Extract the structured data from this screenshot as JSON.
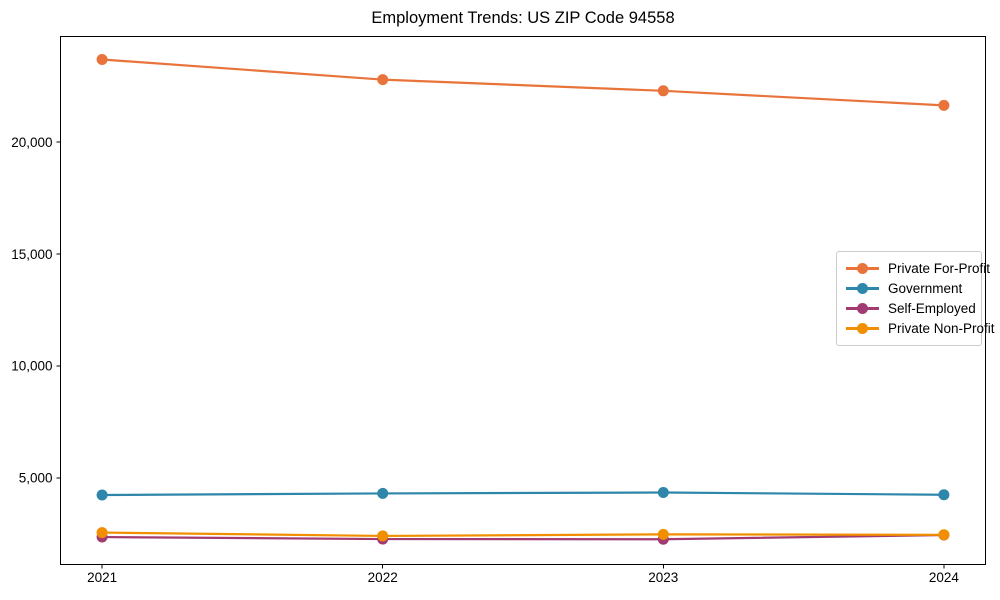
{
  "chart_data": {
    "type": "line",
    "title": "Employment Trends: US ZIP Code 94558",
    "x": [
      2021,
      2022,
      2023,
      2024
    ],
    "x_tick_labels": [
      "2021",
      "2022",
      "2023",
      "2024"
    ],
    "y_ticks": [
      5000,
      10000,
      15000,
      20000
    ],
    "y_tick_labels": [
      "5,000",
      "10,000",
      "15,000",
      "20,000"
    ],
    "xlim": [
      2020.85,
      2024.15
    ],
    "ylim": [
      1100,
      24750
    ],
    "grid": false,
    "marker": "circle",
    "legend_position": "center right",
    "axis_color": "#000000",
    "text_color": "#000000",
    "background_color": "#ffffff",
    "series": [
      {
        "name": "Private For-Profit",
        "color": "#e8743b",
        "values": [
          23700,
          22800,
          22300,
          21650
        ]
      },
      {
        "name": "Government",
        "color": "#2e86ab",
        "values": [
          4230,
          4300,
          4340,
          4240
        ]
      },
      {
        "name": "Self-Employed",
        "color": "#a23b72",
        "values": [
          2350,
          2260,
          2250,
          2440
        ]
      },
      {
        "name": "Private Non-Profit",
        "color": "#f18f01",
        "values": [
          2550,
          2400,
          2470,
          2450
        ]
      }
    ]
  }
}
